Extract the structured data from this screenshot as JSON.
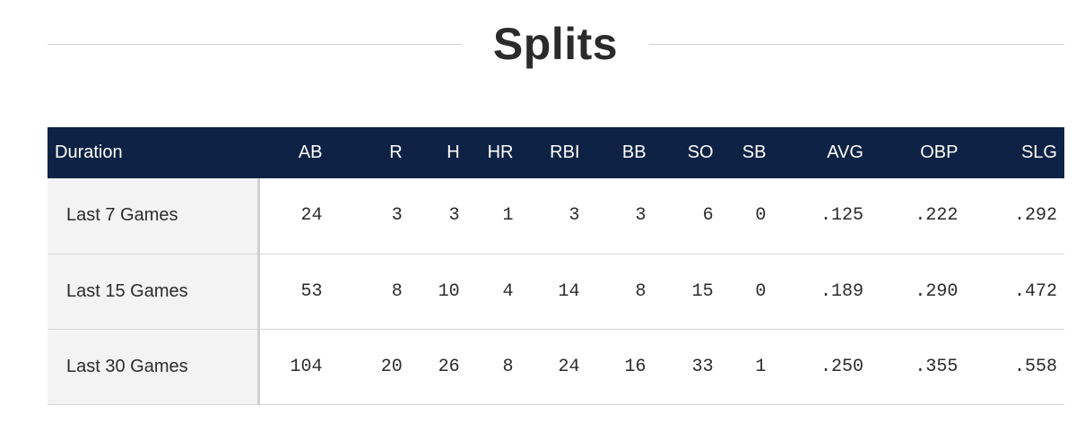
{
  "title": "Splits",
  "table": {
    "columns": [
      "Duration",
      "AB",
      "R",
      "H",
      "HR",
      "RBI",
      "BB",
      "SO",
      "SB",
      "AVG",
      "OBP",
      "SLG"
    ],
    "rows": [
      [
        "Last 7 Games",
        "24",
        "3",
        "3",
        "1",
        "3",
        "3",
        "6",
        "0",
        ".125",
        ".222",
        ".292"
      ],
      [
        "Last 15 Games",
        "53",
        "8",
        "10",
        "4",
        "14",
        "8",
        "15",
        "0",
        ".189",
        ".290",
        ".472"
      ],
      [
        "Last 30 Games",
        "104",
        "20",
        "26",
        "8",
        "24",
        "16",
        "33",
        "1",
        ".250",
        ".355",
        ".558"
      ]
    ]
  },
  "colors": {
    "header_bg": "#0e2245",
    "header_text": "#ffffff",
    "first_col_bg": "#f3f3f3",
    "text": "#2b2b2b"
  }
}
